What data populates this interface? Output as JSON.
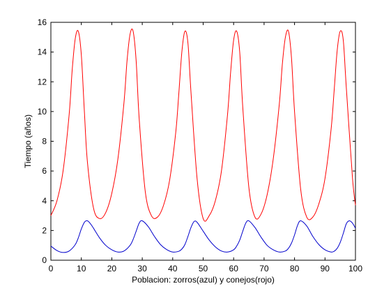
{
  "chart_data": {
    "type": "line",
    "title": "",
    "xlabel": "Poblacion: zorros(azul) y conejos(rojo)",
    "ylabel": "Tiempo (años)",
    "xlim": [
      0,
      100
    ],
    "ylim": [
      0,
      16
    ],
    "xticks": [
      0,
      10,
      20,
      30,
      40,
      50,
      60,
      70,
      80,
      90,
      100
    ],
    "yticks": [
      0,
      2,
      4,
      6,
      8,
      10,
      12,
      14,
      16
    ],
    "grid": false,
    "legend": "none",
    "series": [
      {
        "color": "#ff0000",
        "x": [
          0,
          2,
          4,
          6,
          7,
          8,
          9,
          10,
          11,
          12,
          14,
          16,
          18,
          20,
          22,
          24,
          25,
          26,
          27,
          28,
          29,
          31,
          33,
          35,
          37,
          39,
          41,
          42,
          43,
          44,
          45,
          46,
          48,
          50,
          52,
          54,
          56,
          58,
          59,
          60,
          61,
          62,
          63,
          65,
          67,
          69,
          71,
          73,
          75,
          76,
          77,
          78,
          79,
          80,
          82,
          84,
          86,
          88,
          90,
          92,
          93,
          94,
          95,
          96,
          97,
          99,
          100
        ],
        "y": [
          3.0,
          4.0,
          6.0,
          9.8,
          12.8,
          14.9,
          15.4,
          13.8,
          10.0,
          6.6,
          3.5,
          2.8,
          3.2,
          4.5,
          6.8,
          10.6,
          13.4,
          15.2,
          15.4,
          13.4,
          9.5,
          4.6,
          3.0,
          2.9,
          3.7,
          5.4,
          8.6,
          11.2,
          14.0,
          15.4,
          14.6,
          11.3,
          5.5,
          2.8,
          3.0,
          4.0,
          6.0,
          9.8,
          12.6,
          14.8,
          15.4,
          14.0,
          10.3,
          4.9,
          2.9,
          3.1,
          4.4,
          6.8,
          10.5,
          13.2,
          15.0,
          15.4,
          13.6,
          10.0,
          4.8,
          2.9,
          2.9,
          3.8,
          5.5,
          8.8,
          11.4,
          14.1,
          15.4,
          14.8,
          11.6,
          5.6,
          3.7
        ]
      },
      {
        "color": "#0000cc",
        "x": [
          0,
          2,
          4,
          6,
          8,
          9,
          10,
          11,
          12,
          13,
          14,
          16,
          18,
          20,
          22,
          24,
          26,
          27,
          28,
          29,
          30,
          32,
          34,
          36,
          38,
          40,
          42,
          43,
          44,
          45,
          46,
          47,
          48,
          50,
          52,
          54,
          56,
          58,
          60,
          61,
          62,
          63,
          64,
          65,
          67,
          69,
          71,
          73,
          75,
          77,
          78,
          79,
          80,
          81,
          82,
          84,
          86,
          88,
          90,
          92,
          93,
          94,
          95,
          96,
          97,
          98,
          99,
          100
        ],
        "y": [
          0.95,
          0.65,
          0.52,
          0.62,
          1.05,
          1.5,
          2.1,
          2.55,
          2.65,
          2.45,
          2.15,
          1.5,
          1.0,
          0.7,
          0.55,
          0.62,
          1.0,
          1.4,
          1.95,
          2.5,
          2.65,
          2.25,
          1.6,
          1.05,
          0.72,
          0.55,
          0.6,
          0.75,
          1.05,
          1.6,
          2.2,
          2.6,
          2.55,
          1.95,
          1.35,
          0.9,
          0.62,
          0.55,
          0.7,
          0.95,
          1.35,
          1.95,
          2.5,
          2.65,
          2.2,
          1.55,
          1.0,
          0.7,
          0.55,
          0.62,
          0.8,
          1.15,
          1.7,
          2.35,
          2.65,
          2.3,
          1.6,
          1.05,
          0.7,
          0.55,
          0.6,
          0.8,
          1.2,
          1.8,
          2.45,
          2.65,
          2.5,
          2.15
        ]
      }
    ]
  }
}
